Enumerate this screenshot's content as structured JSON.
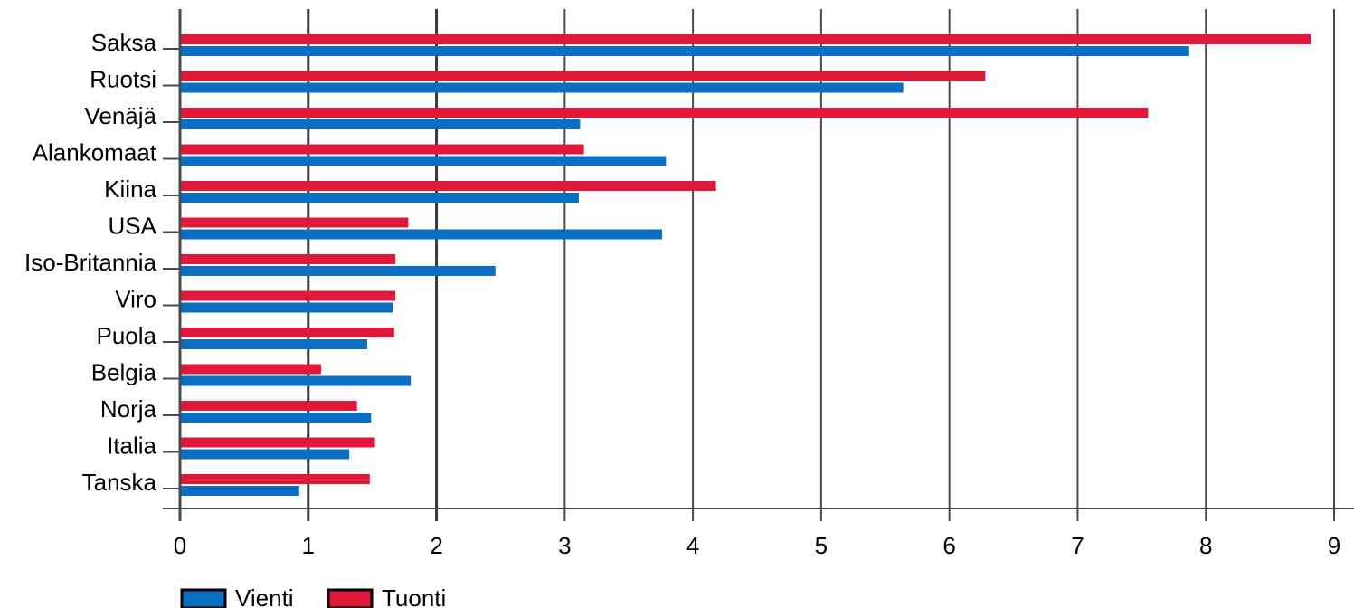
{
  "chart_data": {
    "type": "bar",
    "orientation": "horizontal",
    "categories": [
      "Saksa",
      "Ruotsi",
      "Venäjä",
      "Alankomaat",
      "Kiina",
      "USA",
      "Iso-Britannia",
      "Viro",
      "Puola",
      "Belgia",
      "Norja",
      "Italia",
      "Tanska"
    ],
    "series": [
      {
        "name": "Tuonti",
        "color": "#e0193a",
        "values": [
          8.82,
          6.28,
          7.55,
          3.15,
          4.18,
          1.78,
          1.68,
          1.68,
          1.67,
          1.1,
          1.38,
          1.52,
          1.48
        ]
      },
      {
        "name": "Vienti",
        "color": "#0a6fc2",
        "values": [
          7.87,
          5.64,
          3.12,
          3.79,
          3.11,
          3.76,
          2.46,
          1.66,
          1.46,
          1.8,
          1.49,
          1.32,
          0.93
        ]
      }
    ],
    "xlim": [
      0,
      9
    ],
    "xticks": [
      "0",
      "1",
      "2",
      "3",
      "4",
      "5",
      "6",
      "7",
      "8",
      "9"
    ],
    "grid": "vertical",
    "legend": "bottom-left",
    "legend_order": [
      "Vienti",
      "Tuonti"
    ]
  }
}
